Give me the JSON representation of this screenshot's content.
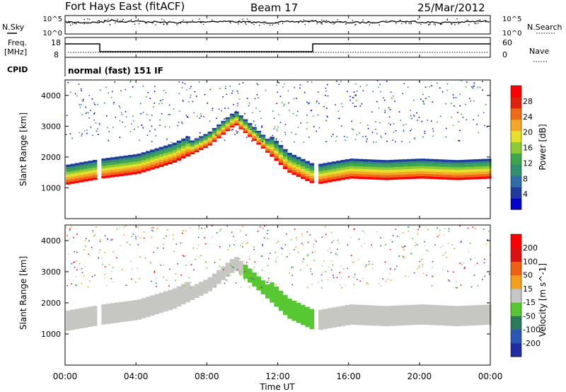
{
  "header": {
    "site": "Fort Hays East (fitACF)",
    "beam": "Beam 17",
    "date": "25/Mar/2012"
  },
  "noise_panel": {
    "left_label": "N.Sky",
    "right_label": "N.Search",
    "left_ticks": [
      "10^5",
      "10^0"
    ],
    "right_ticks": [
      "10^5",
      "10^0"
    ]
  },
  "freq_panel": {
    "left_label": "Freq.",
    "left_unit": "[MHz]",
    "right_label": "Nave",
    "left_ticks": [
      "18",
      "8"
    ],
    "right_ticks": [
      "60",
      "0"
    ]
  },
  "cpid_panel": {
    "label": "CPID",
    "mode_text": "normal (fast) 151 IF"
  },
  "chart_data": [
    {
      "type": "heatmap",
      "name": "power",
      "ylabel": "Slant Range [km]",
      "ylim": [
        0,
        4500
      ],
      "yticks": [
        "1000",
        "2000",
        "3000",
        "4000"
      ],
      "colorbar_label": "Power [dB]",
      "colorbar_ticks": [
        "4",
        "8",
        "12",
        "16",
        "20",
        "24",
        "28"
      ],
      "colorscale": [
        "#0000cc",
        "#1e3c9c",
        "#2e6ea8",
        "#2f8f6e",
        "#3ea54a",
        "#8ccc32",
        "#e6e028",
        "#f5a623",
        "#f06a14",
        "#e0200c",
        "#ff0000"
      ],
      "echo_lower_edge_km": [
        {
          "t": 0.0,
          "v": 1100
        },
        {
          "t": 1.5,
          "v": 1250
        },
        {
          "t": 2.0,
          "v": 1300
        },
        {
          "t": 4.0,
          "v": 1450
        },
        {
          "t": 6.0,
          "v": 1800
        },
        {
          "t": 8.0,
          "v": 2350
        },
        {
          "t": 9.5,
          "v": 3050
        },
        {
          "t": 11.0,
          "v": 2300
        },
        {
          "t": 12.5,
          "v": 1500
        },
        {
          "t": 14.0,
          "v": 1100
        },
        {
          "t": 16.0,
          "v": 1300
        },
        {
          "t": 18.0,
          "v": 1250
        },
        {
          "t": 20.0,
          "v": 1300
        },
        {
          "t": 22.0,
          "v": 1250
        },
        {
          "t": 24.0,
          "v": 1300
        }
      ]
    },
    {
      "type": "heatmap",
      "name": "velocity",
      "ylabel": "Slant Range [km]",
      "ylim": [
        0,
        4500
      ],
      "yticks": [
        "1000",
        "2000",
        "3000",
        "4000"
      ],
      "colorbar_label": "Velocity [m s^-1]",
      "colorbar_ticks": [
        "200",
        "100",
        "50",
        "15",
        "-15",
        "-50",
        "-100",
        "-200"
      ],
      "colorscale": [
        "#1e2ea0",
        "#2a57b8",
        "#2d7a5a",
        "#58c832",
        "#c6c6c2",
        "#f5a018",
        "#f06010",
        "#e01010",
        "#ff0000"
      ]
    }
  ],
  "x_axis": {
    "label": "Time UT",
    "ticks": [
      "00:00",
      "04:00",
      "08:00",
      "12:00",
      "16:00",
      "20:00",
      "00:00"
    ],
    "range_hours": [
      0,
      24
    ]
  }
}
